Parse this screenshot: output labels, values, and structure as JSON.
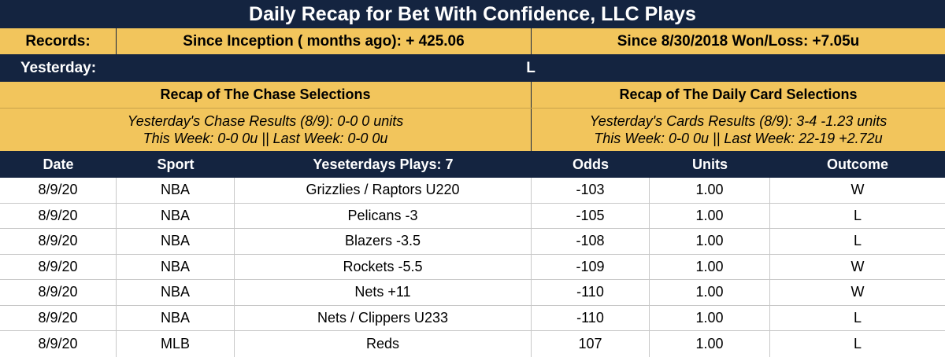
{
  "title": "Daily Recap for Bet With Confidence, LLC Plays",
  "records": {
    "label": "Records:",
    "since_inception": "Since Inception ( months ago): + 425.06",
    "since_date": "Since 8/30/2018 Won/Loss: +7.05u"
  },
  "yesterday": {
    "label": "Yesterday:",
    "value": "L"
  },
  "chase": {
    "heading": "Recap of The Chase Selections",
    "line1": "Yesterday's Chase Results (8/9): 0-0 0 units",
    "line2": "This Week: 0-0 0u || Last Week: 0-0 0u"
  },
  "daily_card": {
    "heading": "Recap of The Daily Card Selections",
    "line1": "Yesterday's Cards Results (8/9): 3-4 -1.23 units",
    "line2": "This Week: 0-0 0u || Last Week: 22-19 +2.72u"
  },
  "table": {
    "headers": {
      "date": "Date",
      "sport": "Sport",
      "plays": "Yeseterdays Plays: 7",
      "odds": "Odds",
      "units": "Units",
      "outcome": "Outcome"
    },
    "rows": [
      {
        "date": "8/9/20",
        "sport": "NBA",
        "play": "Grizzlies / Raptors U220",
        "odds": "-103",
        "units": "1.00",
        "outcome": "W"
      },
      {
        "date": "8/9/20",
        "sport": "NBA",
        "play": "Pelicans -3",
        "odds": "-105",
        "units": "1.00",
        "outcome": "L"
      },
      {
        "date": "8/9/20",
        "sport": "NBA",
        "play": "Blazers -3.5",
        "odds": "-108",
        "units": "1.00",
        "outcome": "L"
      },
      {
        "date": "8/9/20",
        "sport": "NBA",
        "play": "Rockets -5.5",
        "odds": "-109",
        "units": "1.00",
        "outcome": "W"
      },
      {
        "date": "8/9/20",
        "sport": "NBA",
        "play": "Nets +11",
        "odds": "-110",
        "units": "1.00",
        "outcome": "W"
      },
      {
        "date": "8/9/20",
        "sport": "NBA",
        "play": "Nets / Clippers U233",
        "odds": "-110",
        "units": "1.00",
        "outcome": "L"
      },
      {
        "date": "8/9/20",
        "sport": "MLB",
        "play": "Reds",
        "odds": "107",
        "units": "1.00",
        "outcome": "L"
      }
    ]
  },
  "colors": {
    "navy": "#142440",
    "gold": "#f2c55c"
  }
}
